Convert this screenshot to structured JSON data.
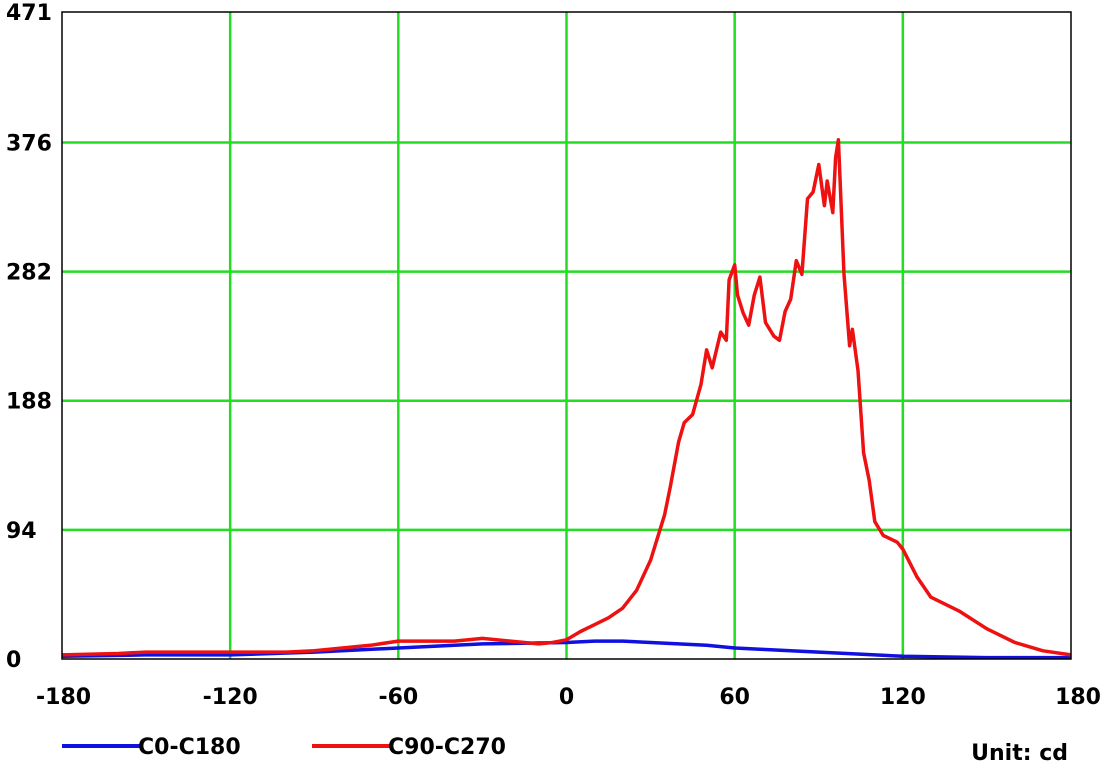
{
  "chart_data": {
    "type": "line",
    "unit_label": "Unit: cd",
    "xlim": [
      -180,
      180
    ],
    "ylim": [
      0,
      471
    ],
    "x_ticks": [
      -180,
      -120,
      -60,
      0,
      60,
      120,
      180
    ],
    "x_tick_labels": [
      "-180",
      "-120",
      "-60",
      "0",
      "60",
      "120",
      "180"
    ],
    "y_ticks": [
      0,
      94,
      188,
      282,
      376,
      471
    ],
    "y_tick_labels": [
      "0",
      "94",
      "188",
      "282",
      "376",
      "471"
    ],
    "grid": true,
    "legend_position": "bottom-left",
    "colors": {
      "grid": "#22dd22",
      "frame": "#000000"
    },
    "series": [
      {
        "name": "C0-C180",
        "color": "#1010e0",
        "points": [
          [
            -180,
            2
          ],
          [
            -150,
            3
          ],
          [
            -120,
            3
          ],
          [
            -90,
            5
          ],
          [
            -60,
            8
          ],
          [
            -30,
            11
          ],
          [
            0,
            12
          ],
          [
            10,
            13
          ],
          [
            20,
            13
          ],
          [
            30,
            12
          ],
          [
            40,
            11
          ],
          [
            50,
            10
          ],
          [
            60,
            8
          ],
          [
            70,
            7
          ],
          [
            80,
            6
          ],
          [
            90,
            5
          ],
          [
            100,
            4
          ],
          [
            110,
            3
          ],
          [
            120,
            2
          ],
          [
            150,
            1
          ],
          [
            180,
            1
          ]
        ]
      },
      {
        "name": "C90-C270",
        "color": "#ee1111",
        "points": [
          [
            -180,
            3
          ],
          [
            -160,
            4
          ],
          [
            -150,
            5
          ],
          [
            -140,
            5
          ],
          [
            -130,
            5
          ],
          [
            -120,
            5
          ],
          [
            -110,
            5
          ],
          [
            -100,
            5
          ],
          [
            -90,
            6
          ],
          [
            -80,
            8
          ],
          [
            -70,
            10
          ],
          [
            -60,
            13
          ],
          [
            -50,
            13
          ],
          [
            -40,
            13
          ],
          [
            -30,
            15
          ],
          [
            -20,
            13
          ],
          [
            -10,
            11
          ],
          [
            -5,
            12
          ],
          [
            0,
            14
          ],
          [
            5,
            20
          ],
          [
            10,
            25
          ],
          [
            15,
            30
          ],
          [
            20,
            37
          ],
          [
            25,
            50
          ],
          [
            30,
            72
          ],
          [
            35,
            105
          ],
          [
            37,
            125
          ],
          [
            40,
            158
          ],
          [
            42,
            172
          ],
          [
            45,
            178
          ],
          [
            48,
            200
          ],
          [
            50,
            225
          ],
          [
            52,
            212
          ],
          [
            55,
            238
          ],
          [
            57,
            232
          ],
          [
            58,
            276
          ],
          [
            60,
            287
          ],
          [
            61,
            265
          ],
          [
            63,
            252
          ],
          [
            65,
            243
          ],
          [
            67,
            265
          ],
          [
            69,
            278
          ],
          [
            71,
            245
          ],
          [
            74,
            235
          ],
          [
            76,
            232
          ],
          [
            78,
            253
          ],
          [
            80,
            262
          ],
          [
            82,
            290
          ],
          [
            84,
            280
          ],
          [
            86,
            335
          ],
          [
            88,
            340
          ],
          [
            90,
            360
          ],
          [
            92,
            330
          ],
          [
            93,
            348
          ],
          [
            95,
            325
          ],
          [
            96,
            365
          ],
          [
            97,
            378
          ],
          [
            99,
            280
          ],
          [
            101,
            228
          ],
          [
            102,
            240
          ],
          [
            104,
            210
          ],
          [
            106,
            150
          ],
          [
            108,
            130
          ],
          [
            110,
            100
          ],
          [
            113,
            90
          ],
          [
            118,
            85
          ],
          [
            120,
            80
          ],
          [
            125,
            60
          ],
          [
            130,
            45
          ],
          [
            140,
            35
          ],
          [
            150,
            22
          ],
          [
            160,
            12
          ],
          [
            170,
            6
          ],
          [
            180,
            3
          ]
        ]
      }
    ]
  }
}
